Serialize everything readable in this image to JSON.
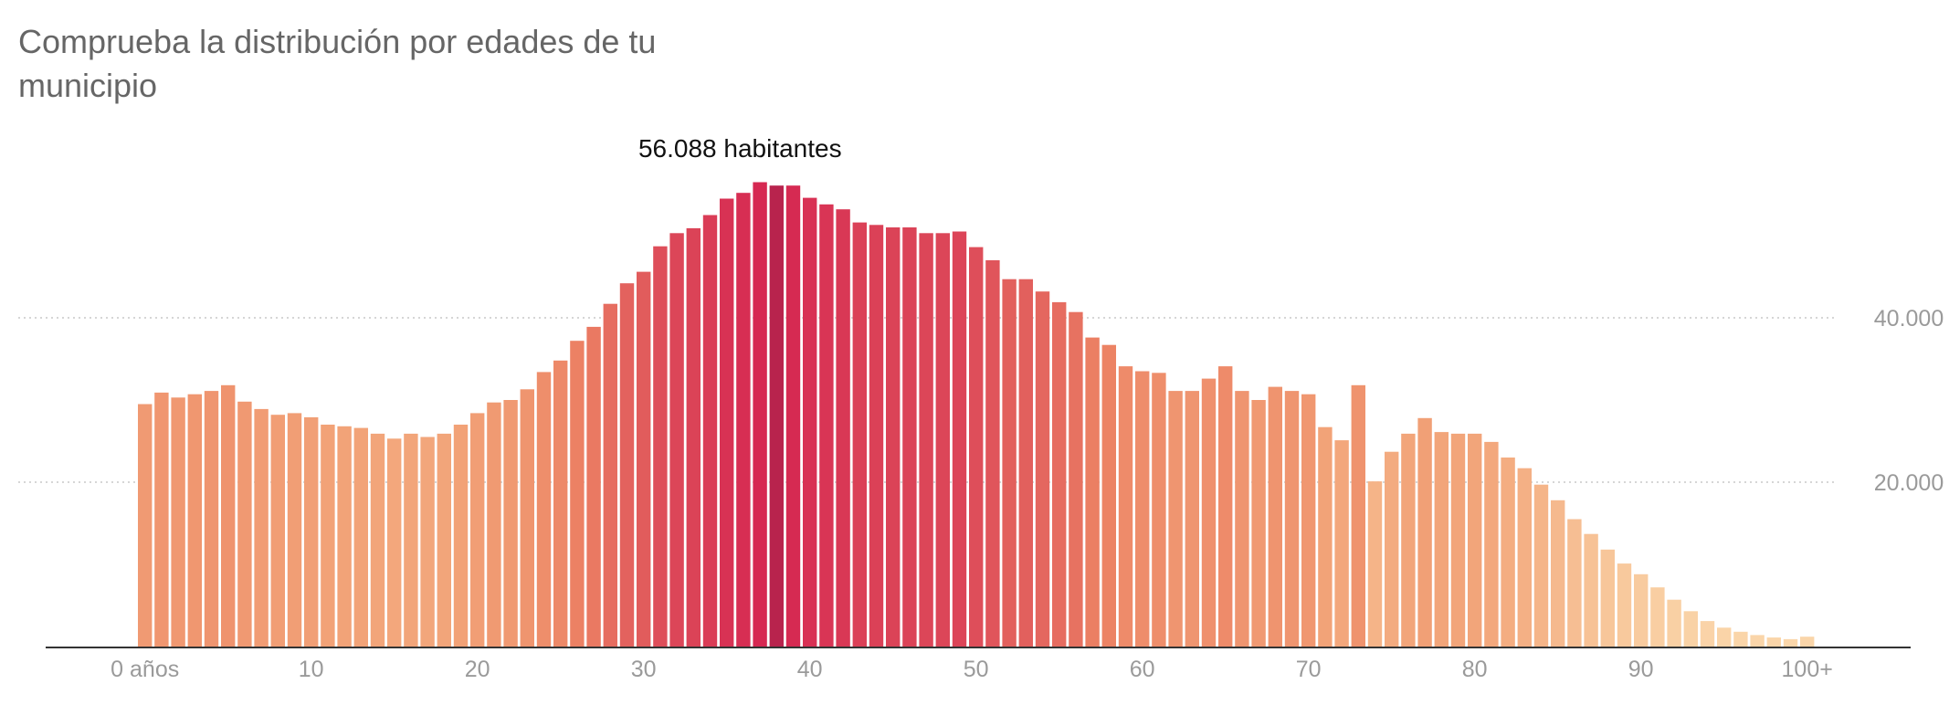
{
  "chart_data": {
    "type": "bar",
    "title": "Comprueba la distribución por edades de tu municipio",
    "xlabel": "",
    "ylabel": "",
    "x_ticks": [
      {
        "age": 0,
        "label": "0 años"
      },
      {
        "age": 10,
        "label": "10"
      },
      {
        "age": 20,
        "label": "20"
      },
      {
        "age": 30,
        "label": "30"
      },
      {
        "age": 40,
        "label": "40"
      },
      {
        "age": 50,
        "label": "50"
      },
      {
        "age": 60,
        "label": "60"
      },
      {
        "age": 70,
        "label": "70"
      },
      {
        "age": 80,
        "label": "80"
      },
      {
        "age": 90,
        "label": "90"
      },
      {
        "age": 100,
        "label": "100+"
      }
    ],
    "y_ticks": [
      {
        "value": 20000,
        "label": "20.000"
      },
      {
        "value": 40000,
        "label": "40.000"
      }
    ],
    "ylim": [
      0,
      60000
    ],
    "grid": true,
    "highlight": {
      "age": 38,
      "label": "56.088 habitantes",
      "value": 56088
    },
    "values": [
      29500,
      30900,
      30300,
      30700,
      31100,
      31800,
      29800,
      28900,
      28200,
      28400,
      27900,
      27000,
      26800,
      26600,
      25900,
      25300,
      25900,
      25500,
      25900,
      27000,
      28400,
      29700,
      30000,
      31300,
      33400,
      34800,
      37200,
      38900,
      41700,
      44200,
      45600,
      48700,
      50300,
      50900,
      52500,
      54500,
      55200,
      56500,
      56088,
      56088,
      54600,
      53800,
      53200,
      51600,
      51300,
      51000,
      51000,
      50300,
      50300,
      50500,
      48600,
      47000,
      44700,
      44700,
      43200,
      41900,
      40700,
      37600,
      36700,
      34100,
      33500,
      33300,
      31100,
      31100,
      32600,
      34100,
      31100,
      30000,
      31600,
      31100,
      30700,
      26700,
      25100,
      31800,
      20100,
      23700,
      25900,
      27800,
      26100,
      25900,
      25900,
      24900,
      23000,
      21700,
      19700,
      17800,
      15500,
      13700,
      11800,
      10100,
      8800,
      7200,
      5700,
      4300,
      3100,
      2300,
      1800,
      1400,
      1100,
      900,
      1200
    ]
  }
}
